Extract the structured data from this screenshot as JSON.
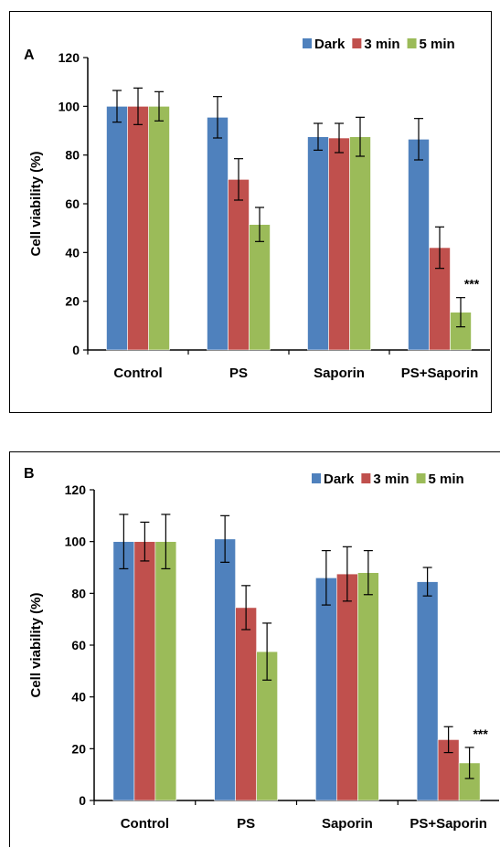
{
  "chart_data": [
    {
      "type": "bar",
      "panel_label": "A",
      "categories": [
        "Control",
        "PS",
        "Saporin",
        "PS+Saporin"
      ],
      "series": [
        {
          "name": "Dark",
          "values": [
            100,
            95.5,
            87.5,
            86.5
          ],
          "errors": [
            6.5,
            8.5,
            5.5,
            8.5
          ]
        },
        {
          "name": "3 min",
          "values": [
            100,
            70,
            87,
            42
          ],
          "errors": [
            7.5,
            8.5,
            6,
            8.5
          ]
        },
        {
          "name": "5 min",
          "values": [
            100,
            51.5,
            87.5,
            15.5
          ],
          "errors": [
            6,
            7,
            8,
            6
          ]
        }
      ],
      "ylabel": "Cell viability (%)",
      "xlabel": "",
      "ylim": [
        0,
        120
      ],
      "yticks": [
        0,
        20,
        40,
        60,
        80,
        100,
        120
      ],
      "annotations": [
        {
          "category": "PS+Saporin",
          "series": "5 min",
          "text": "***"
        }
      ],
      "legend": "top-right",
      "grid": false
    },
    {
      "type": "bar",
      "panel_label": "B",
      "categories": [
        "Control",
        "PS",
        "Saporin",
        "PS+Saporin"
      ],
      "series": [
        {
          "name": "Dark",
          "values": [
            100,
            101,
            86,
            84.5
          ],
          "errors": [
            10.5,
            9,
            10.5,
            5.5
          ]
        },
        {
          "name": "3 min",
          "values": [
            100,
            74.5,
            87.5,
            23.5
          ],
          "errors": [
            7.5,
            8.5,
            10.5,
            5
          ]
        },
        {
          "name": "5 min",
          "values": [
            100,
            57.5,
            88,
            14.5
          ],
          "errors": [
            10.5,
            11,
            8.5,
            6
          ]
        }
      ],
      "ylabel": "Cell viability (%)",
      "xlabel": "",
      "ylim": [
        0,
        120
      ],
      "yticks": [
        0,
        20,
        40,
        60,
        80,
        100,
        120
      ],
      "annotations": [
        {
          "category": "PS+Saporin",
          "series": "5 min",
          "text": "***"
        }
      ],
      "legend": "top-right",
      "grid": false
    }
  ],
  "colors": {
    "Dark": "#4f81bd",
    "3 min": "#c0504d",
    "5 min": "#9bbb59"
  }
}
